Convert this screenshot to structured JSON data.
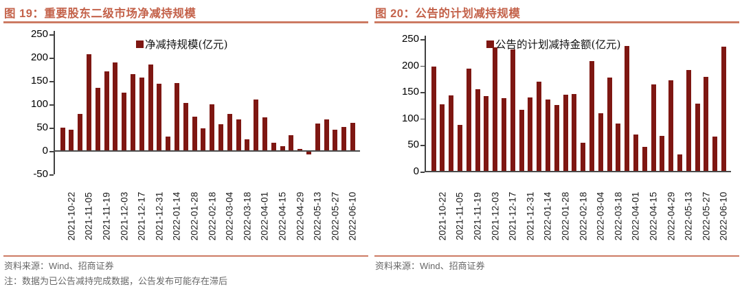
{
  "colors": {
    "bar": "#7E1712",
    "accent_text": "#C4634B",
    "accent_rule": "#CC7A62",
    "axis": "#404040",
    "baseline": "#4A4A4A",
    "source_text": "#666666"
  },
  "figures": [
    {
      "title": "图 19：重要股东二级市场净减持规模",
      "legend": "净减持规模(亿元)",
      "source": "资料来源：Wind、招商证券",
      "note": "注：数据为已公告减持完成数据，公告发布可能存在滞后"
    },
    {
      "title": "图 20：公告的计划减持规模",
      "legend": "公告的计划减持金额(亿元)",
      "source": "资料来源：Wind、招商证券",
      "note": ""
    }
  ],
  "chart_data": [
    {
      "type": "bar",
      "title": "图 19：重要股东二级市场净减持规模",
      "legend": [
        "净减持规模(亿元)"
      ],
      "ylabel": "亿元",
      "ylim": [
        -50,
        250
      ],
      "yticks": [
        250,
        200,
        150,
        100,
        50,
        0,
        -50
      ],
      "grid": false,
      "legend_position": "top-center",
      "bars_are_weekly": true,
      "x_tick_labels": [
        "2021-10-22",
        "2021-11-05",
        "2021-11-19",
        "2021-12-03",
        "2021-12-17",
        "2021-12-31",
        "2022-01-14",
        "2022-01-28",
        "2022-02-18",
        "2022-03-04",
        "2022-03-18",
        "2022-04-01",
        "2022-04-15",
        "2022-04-29",
        "2022-05-13",
        "2022-05-27",
        "2022-06-10"
      ],
      "first_labeled_bar_index": 1,
      "label_every": 2,
      "values": [
        50,
        45,
        80,
        207,
        135,
        170,
        190,
        125,
        164,
        158,
        185,
        144,
        31,
        146,
        103,
        74,
        48,
        100,
        57,
        80,
        68,
        25,
        111,
        72,
        17,
        10,
        34,
        4,
        -7,
        59,
        68,
        45,
        51,
        60
      ]
    },
    {
      "type": "bar",
      "title": "图 20：公告的计划减持规模",
      "legend": [
        "公告的计划减持金额(亿元)"
      ],
      "ylabel": "亿元",
      "ylim": [
        0,
        250
      ],
      "yticks": [
        250,
        200,
        150,
        100,
        50,
        0
      ],
      "grid": false,
      "legend_position": "top-center",
      "bars_are_weekly": true,
      "x_tick_labels": [
        "2021-10-22",
        "2021-11-05",
        "2021-11-19",
        "2021-12-03",
        "2021-12-17",
        "2021-12-31",
        "2022-01-14",
        "2022-01-28",
        "2022-02-18",
        "2022-03-04",
        "2022-03-18",
        "2022-04-01",
        "2022-04-15",
        "2022-04-29",
        "2022-05-13",
        "2022-05-27",
        "2022-06-10"
      ],
      "first_labeled_bar_index": 1,
      "label_every": 2,
      "values": [
        198,
        127,
        144,
        88,
        194,
        156,
        143,
        235,
        139,
        230,
        117,
        140,
        170,
        136,
        126,
        145,
        146,
        54,
        208,
        110,
        178,
        91,
        237,
        70,
        47,
        165,
        67,
        172,
        33,
        192,
        128,
        179,
        66,
        236
      ]
    }
  ]
}
